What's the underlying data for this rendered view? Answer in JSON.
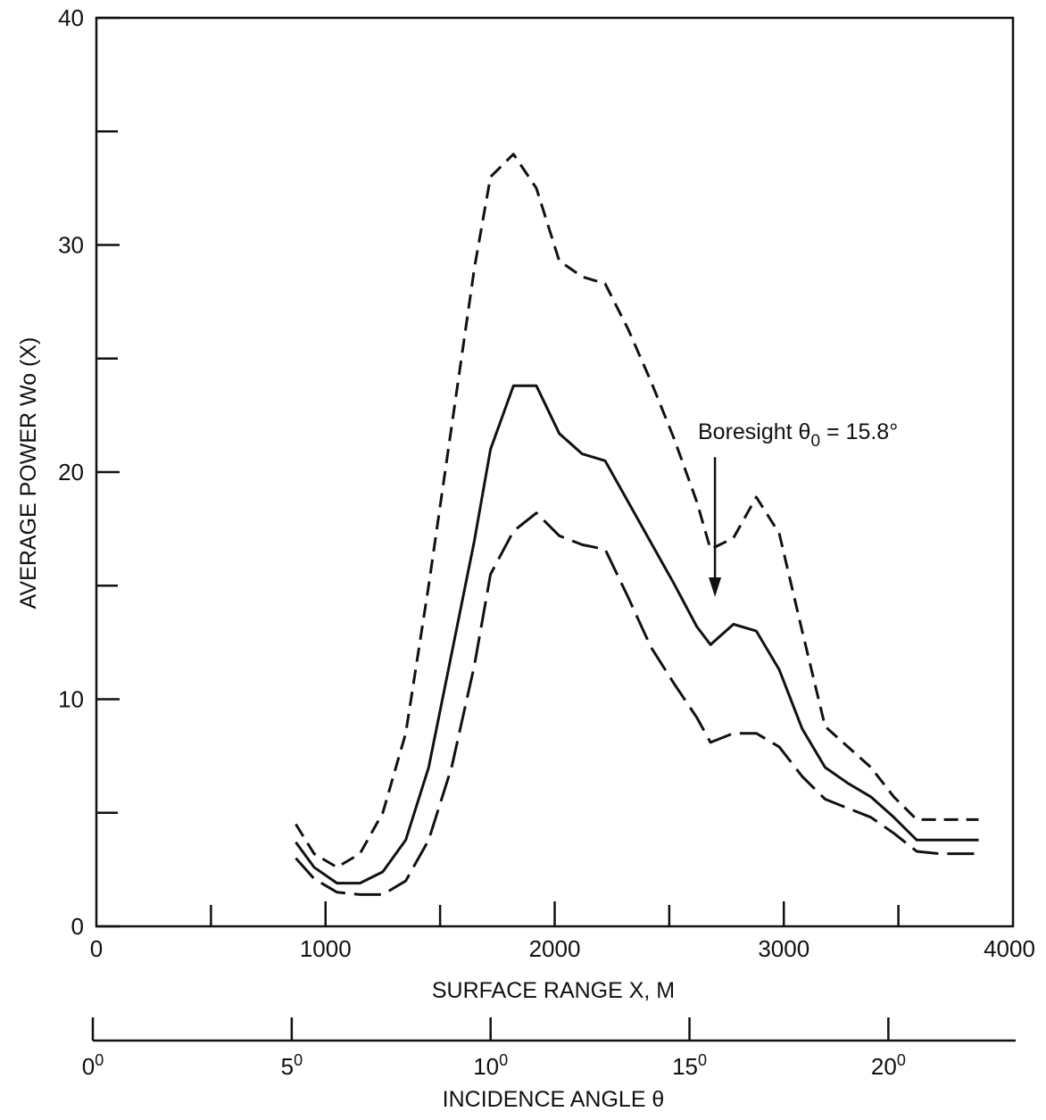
{
  "chart_data": {
    "type": "line",
    "xlabel": "SURFACE RANGE X, M",
    "ylabel": "AVERAGE POWER Wo (X)",
    "xlim": [
      0,
      4000
    ],
    "ylim": [
      0,
      40
    ],
    "x_ticks": [
      0,
      1000,
      2000,
      3000,
      4000
    ],
    "x_minor_ticks": [
      500,
      1500,
      2500,
      3500
    ],
    "y_ticks": [
      0,
      10,
      20,
      30,
      40
    ],
    "y_minor_ticks": [
      5,
      15,
      25,
      35
    ],
    "grid": false,
    "legend": "none",
    "series": [
      {
        "style": "short-dash",
        "x": [
          870,
          950,
          1050,
          1150,
          1250,
          1350,
          1450,
          1550,
          1650,
          1720,
          1820,
          1920,
          2020,
          2120,
          2220,
          2320,
          2420,
          2520,
          2620,
          2680,
          2780,
          2880,
          2980,
          3080,
          3180,
          3280,
          3380,
          3480,
          3580,
          3680,
          3850
        ],
        "y": [
          4.5,
          3.2,
          2.6,
          3.2,
          5.0,
          8.5,
          15.0,
          22.0,
          29.0,
          33.0,
          34.0,
          32.5,
          29.3,
          28.6,
          28.3,
          26.3,
          24.0,
          21.5,
          18.7,
          16.6,
          17.1,
          18.9,
          17.3,
          13.0,
          8.8,
          7.9,
          7.0,
          5.7,
          4.7,
          4.7,
          4.7
        ]
      },
      {
        "style": "solid",
        "x": [
          870,
          950,
          1050,
          1150,
          1250,
          1350,
          1450,
          1550,
          1650,
          1720,
          1820,
          1920,
          2020,
          2120,
          2220,
          2320,
          2420,
          2520,
          2620,
          2680,
          2780,
          2880,
          2980,
          3080,
          3180,
          3280,
          3380,
          3480,
          3580,
          3680,
          3850
        ],
        "y": [
          3.7,
          2.6,
          1.9,
          1.9,
          2.4,
          3.8,
          7.0,
          12.0,
          17.0,
          21.0,
          23.8,
          23.8,
          21.7,
          20.8,
          20.5,
          18.7,
          16.9,
          15.1,
          13.2,
          12.4,
          13.3,
          13.0,
          11.3,
          8.7,
          7.0,
          6.3,
          5.7,
          4.8,
          3.8,
          3.8,
          3.8
        ]
      },
      {
        "style": "long-dash",
        "x": [
          870,
          950,
          1050,
          1150,
          1250,
          1350,
          1450,
          1550,
          1650,
          1720,
          1820,
          1920,
          2020,
          2120,
          2220,
          2320,
          2420,
          2520,
          2620,
          2680,
          2780,
          2880,
          2980,
          3080,
          3180,
          3280,
          3380,
          3480,
          3580,
          3680,
          3850
        ],
        "y": [
          3.0,
          2.1,
          1.5,
          1.4,
          1.4,
          2.0,
          3.8,
          7.0,
          11.5,
          15.5,
          17.4,
          18.2,
          17.2,
          16.8,
          16.6,
          14.5,
          12.3,
          10.7,
          9.2,
          8.1,
          8.5,
          8.5,
          7.9,
          6.6,
          5.6,
          5.2,
          4.8,
          4.1,
          3.3,
          3.2,
          3.2
        ]
      }
    ],
    "annotations": [
      {
        "text": "Boresight θ",
        "subscript": "0",
        "value": " = 15.8°",
        "arrow_x": 2680,
        "arrow_from_y": 20.5,
        "arrow_to_y": 14.5
      }
    ],
    "secondary_axis": {
      "label": "INCIDENCE ANGLE θ",
      "unit_superscript": "0",
      "ticks": [
        0,
        5,
        10,
        15,
        20
      ],
      "range": [
        0,
        23.2
      ]
    }
  }
}
